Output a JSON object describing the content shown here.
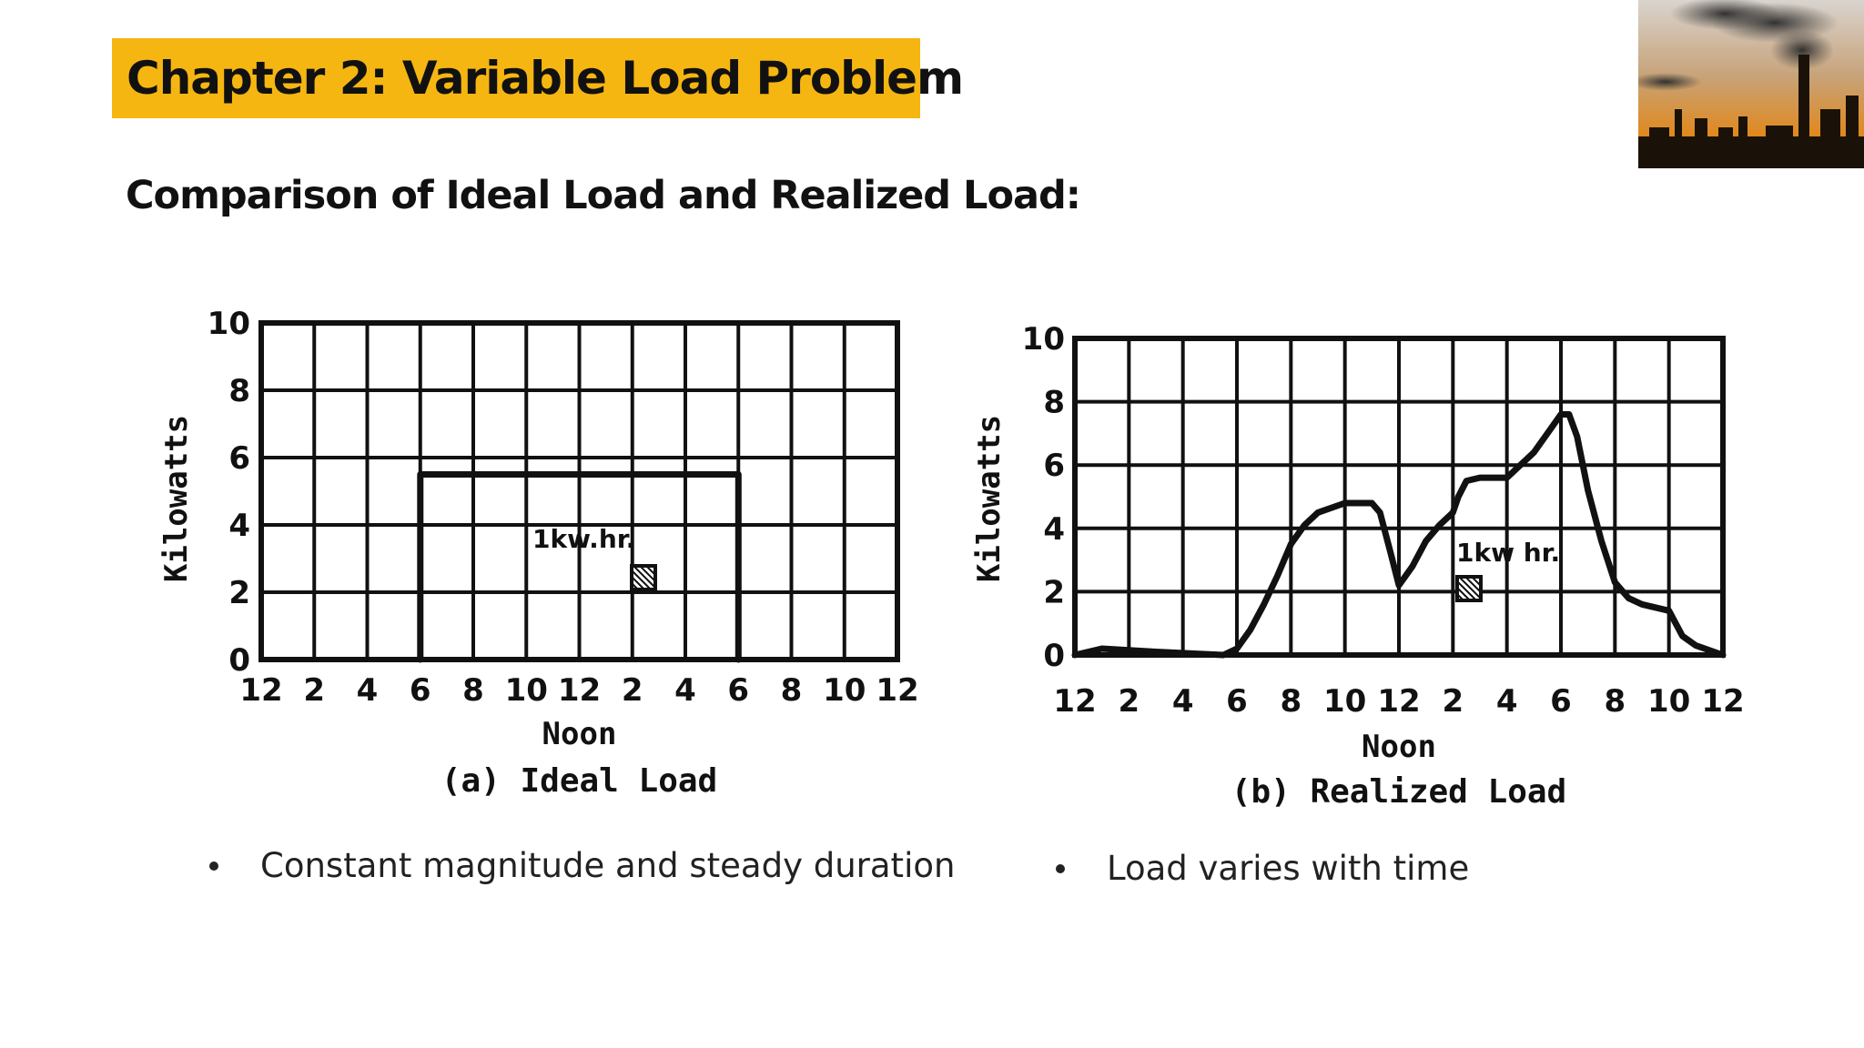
{
  "slide": {
    "title": "Chapter 2: Variable Load Problem",
    "subtitle": "Comparison of Ideal Load and Realized Load:",
    "bullets": [
      "Constant magnitude and steady duration",
      "Load varies with time"
    ],
    "colors": {
      "banner": "#f6b611",
      "ink": "#111111"
    },
    "photo": "factory-smokestack-sunset-image"
  },
  "chart_data": [
    {
      "type": "line",
      "caption": "(a) Ideal Load",
      "ylabel": "Kilowatts",
      "xlabel": "Noon",
      "x_ticks": [
        "12",
        "2",
        "4",
        "6",
        "8",
        "10",
        "12",
        "2",
        "4",
        "6",
        "8",
        "10",
        "12"
      ],
      "y_ticks": [
        "0",
        "2",
        "4",
        "6",
        "8",
        "10"
      ],
      "ylim": [
        0,
        10
      ],
      "xlim": [
        0,
        24
      ],
      "annotation": "1kw.hr.",
      "series": [
        {
          "x": [
            6,
            6,
            18,
            18
          ],
          "y": [
            0,
            5.5,
            5.5,
            0
          ]
        }
      ]
    },
    {
      "type": "line",
      "caption": "(b) Realized Load",
      "ylabel": "Kilowatts",
      "xlabel": "Noon",
      "x_ticks": [
        "12",
        "2",
        "4",
        "6",
        "8",
        "10",
        "12",
        "2",
        "4",
        "6",
        "8",
        "10",
        "12"
      ],
      "y_ticks": [
        "0",
        "2",
        "4",
        "6",
        "8",
        "10"
      ],
      "ylim": [
        0,
        10
      ],
      "xlim": [
        0,
        24
      ],
      "annotation": "1kw hr.",
      "series": [
        {
          "x": [
            0,
            1,
            3,
            5.5,
            6,
            6.5,
            7,
            7.5,
            8,
            8.5,
            9,
            10,
            11,
            11.3,
            11.7,
            12,
            12.5,
            13,
            13.5,
            14,
            14.2,
            14.5,
            15,
            15.5,
            16,
            16.5,
            17,
            17.5,
            18,
            18.3,
            18.6,
            19,
            19.5,
            20,
            20.5,
            21,
            21.5,
            22,
            22.5,
            23,
            24
          ],
          "y": [
            0,
            0.2,
            0.1,
            0,
            0.2,
            0.8,
            1.6,
            2.5,
            3.5,
            4.1,
            4.5,
            4.8,
            4.8,
            4.5,
            3.2,
            2.2,
            2.8,
            3.6,
            4.1,
            4.5,
            5.0,
            5.5,
            5.6,
            5.6,
            5.6,
            6.0,
            6.4,
            7.0,
            7.6,
            7.6,
            6.9,
            5.2,
            3.6,
            2.3,
            1.8,
            1.6,
            1.5,
            1.4,
            0.6,
            0.3,
            0
          ]
        }
      ]
    }
  ]
}
